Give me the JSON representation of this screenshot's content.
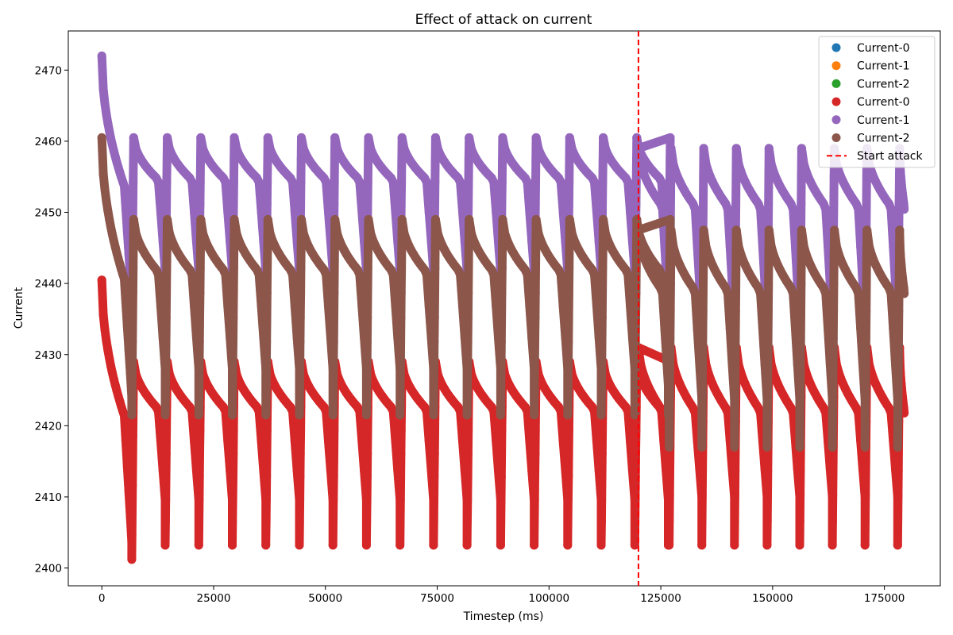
{
  "chart_data": {
    "type": "scatter",
    "title": "Effect of attack on current",
    "xlabel": "Timestep (ms)",
    "ylabel": "Current",
    "xlim": [
      -7500,
      187500
    ],
    "ylim": [
      2397.5,
      2475.5
    ],
    "xticks": [
      0,
      25000,
      50000,
      75000,
      100000,
      125000,
      150000,
      175000
    ],
    "yticks": [
      2400,
      2410,
      2420,
      2430,
      2440,
      2450,
      2460,
      2470
    ],
    "grid": false,
    "legend_position": "top-right",
    "attack_start": 120000,
    "attack_label": "Start attack",
    "period_before_attack": 7500,
    "period_after_attack": 7300,
    "x_end": 179500,
    "series": [
      {
        "name": "Current-0",
        "color": "#1f77b4",
        "drawn": false
      },
      {
        "name": "Current-1",
        "color": "#ff7f0e",
        "drawn": false
      },
      {
        "name": "Current-2",
        "color": "#2ca02c",
        "drawn": false
      },
      {
        "name": "Current-0",
        "color": "#d62728",
        "drawn": true,
        "start_peak": 2440.5,
        "first_trough": 2401.2,
        "peak_before": 2429,
        "trough_before": 2403.2,
        "mid_before": 2416,
        "peak_after": 2431,
        "trough_after": 2403.2,
        "mid_after": 2415
      },
      {
        "name": "Current-1",
        "color": "#9467bd",
        "drawn": true,
        "start_peak": 2472,
        "first_trough": 2435.5,
        "peak_before": 2460.5,
        "trough_before": 2435.5,
        "mid_before": 2448.5,
        "peak_after": 2459,
        "trough_after": 2428,
        "mid_after": 2444
      },
      {
        "name": "Current-2",
        "color": "#8c564b",
        "drawn": true,
        "start_peak": 2460.5,
        "first_trough": 2421.5,
        "peak_before": 2449,
        "trough_before": 2421.5,
        "mid_before": 2435,
        "peak_after": 2447.5,
        "trough_after": 2417,
        "mid_after": 2432
      }
    ],
    "attack_line_color": "#ff0000"
  }
}
